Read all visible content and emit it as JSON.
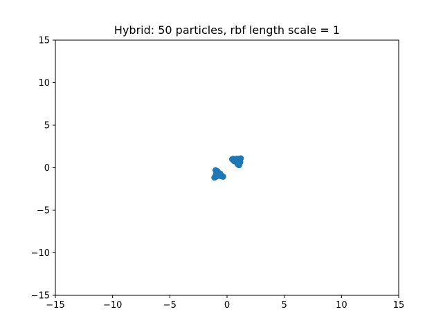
{
  "chart_data": {
    "type": "scatter",
    "title": "Hybrid: 50 particles, rbf length scale = 1",
    "xlabel": "",
    "ylabel": "",
    "xlim": [
      -15,
      15
    ],
    "ylim": [
      -15,
      15
    ],
    "xticks": [
      -15,
      -10,
      -5,
      0,
      5,
      10,
      15
    ],
    "yticks": [
      -15,
      -10,
      -5,
      0,
      5,
      10,
      15
    ],
    "xtick_labels": [
      "−15",
      "−10",
      "−5",
      "0",
      "5",
      "10",
      "15"
    ],
    "ytick_labels": [
      "−15",
      "−10",
      "−5",
      "0",
      "5",
      "10",
      "15"
    ],
    "grid": false,
    "color": "#1f77b4",
    "series": [
      {
        "x": [
          -1.05,
          -1.0,
          -0.95,
          -0.9,
          -0.85,
          -0.8,
          -0.75,
          -0.7,
          -0.65,
          -0.6,
          -1.1,
          -0.95,
          -0.85,
          -0.75,
          -0.65,
          -0.55,
          -0.45,
          -0.35,
          -0.9,
          -0.8,
          -0.7,
          -0.6,
          -1.0,
          -0.85,
          -0.5,
          0.45,
          0.55,
          0.65,
          0.75,
          0.85,
          0.95,
          1.05,
          1.15,
          0.6,
          0.7,
          0.8,
          0.9,
          1.0,
          1.1,
          0.95,
          1.0,
          1.05,
          0.85,
          0.75,
          0.65,
          0.55,
          0.9,
          1.2,
          1.0,
          0.8
        ],
        "y": [
          -1.1,
          -0.95,
          -0.75,
          -0.55,
          -0.4,
          -0.5,
          -0.65,
          -0.8,
          -0.7,
          -0.85,
          -1.15,
          -1.05,
          -0.9,
          -0.95,
          -0.8,
          -0.9,
          -0.95,
          -1.05,
          -0.45,
          -0.6,
          -0.75,
          -0.7,
          -0.3,
          -0.85,
          -1.0,
          1.0,
          0.95,
          0.9,
          0.85,
          0.8,
          0.75,
          0.7,
          0.65,
          0.8,
          0.75,
          0.7,
          0.6,
          0.55,
          0.9,
          0.4,
          0.35,
          0.3,
          1.05,
          0.95,
          0.85,
          1.05,
          0.5,
          1.1,
          1.05,
          0.9
        ]
      }
    ]
  }
}
